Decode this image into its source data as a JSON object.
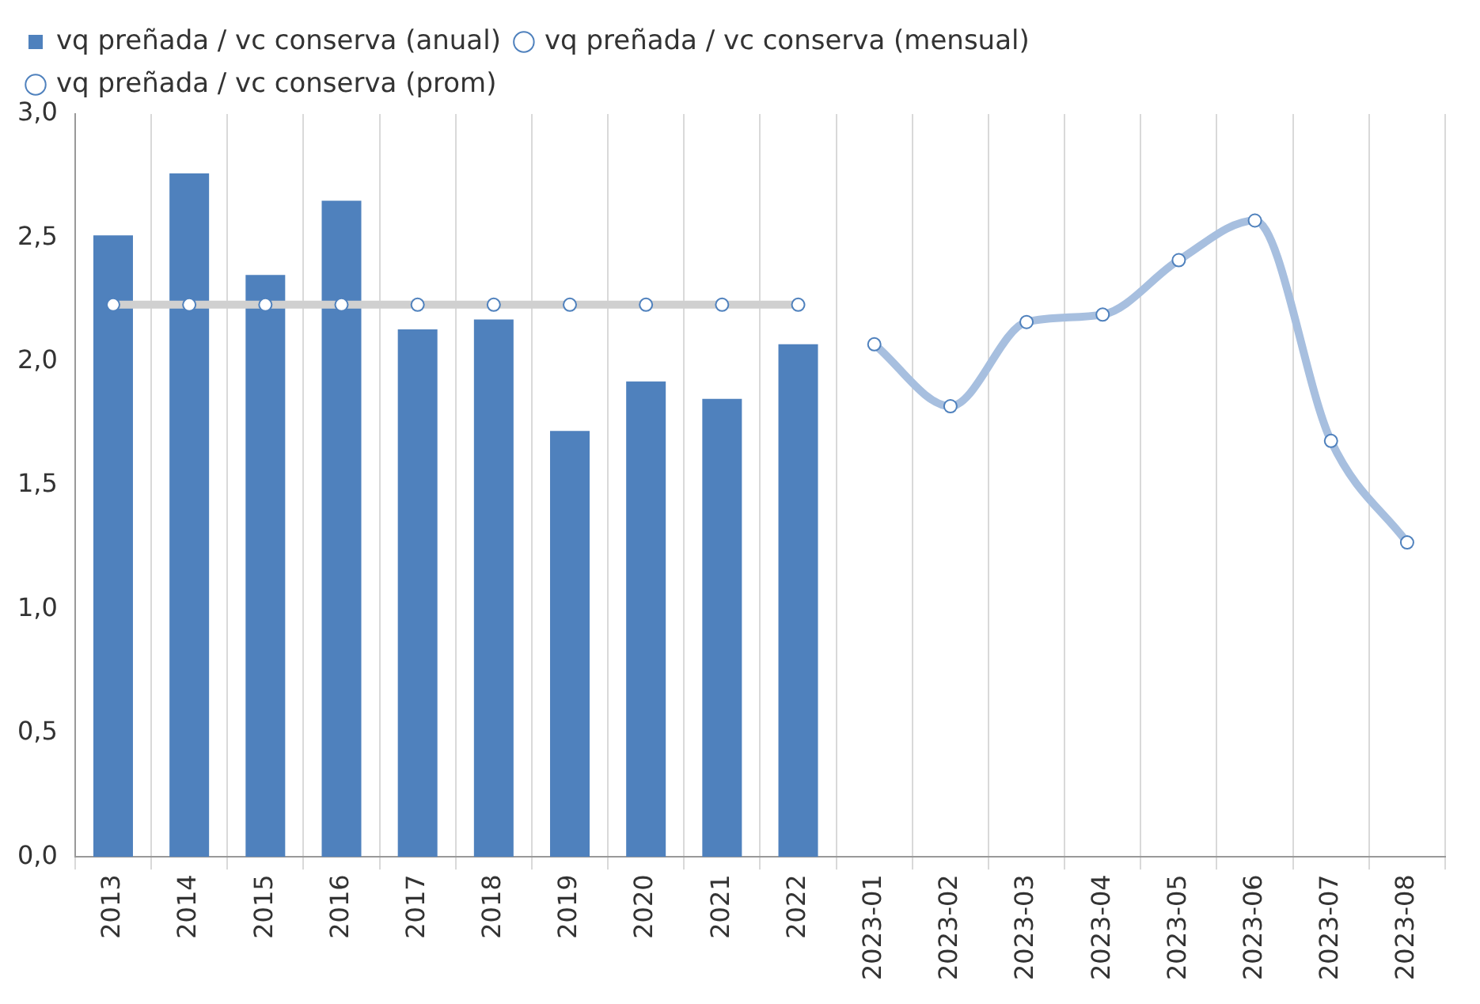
{
  "chart_data": {
    "type": "bar",
    "categories": [
      "2013",
      "2014",
      "2015",
      "2016",
      "2017",
      "2018",
      "2019",
      "2020",
      "2021",
      "2022",
      "2023-01",
      "2023-02",
      "2023-03",
      "2023-04",
      "2023-05",
      "2023-06",
      "2023-07",
      "2023-08"
    ],
    "series": [
      {
        "name": "vq preñada / vc conserva (anual)",
        "color": "#4f81bd",
        "values": [
          2.51,
          2.76,
          2.35,
          2.65,
          2.13,
          2.17,
          1.72,
          1.92,
          1.85,
          2.07,
          null,
          null,
          null,
          null,
          null,
          null,
          null,
          null
        ]
      },
      {
        "name": "vq preñada / vc conserva (mensual)",
        "type": "line",
        "color": "#a7bfdf",
        "marker": "circle",
        "values": [
          null,
          null,
          null,
          null,
          null,
          null,
          null,
          null,
          null,
          null,
          2.07,
          1.82,
          2.16,
          2.19,
          2.41,
          2.57,
          1.68,
          1.27
        ]
      },
      {
        "name": "vq preñada / vc conserva (prom)",
        "type": "line",
        "color": "#d0d0d0",
        "marker": "circle",
        "values": [
          2.23,
          2.23,
          2.23,
          2.23,
          2.23,
          2.23,
          2.23,
          2.23,
          2.23,
          2.23,
          null,
          null,
          null,
          null,
          null,
          null,
          null,
          null
        ]
      }
    ],
    "ylim": [
      0,
      3
    ],
    "yticks": [
      {
        "value": 0,
        "label": "0,0"
      },
      {
        "value": 0.5,
        "label": "0,5"
      },
      {
        "value": 1,
        "label": "1,0"
      },
      {
        "value": 1.5,
        "label": "1,5"
      },
      {
        "value": 2,
        "label": "2,0"
      },
      {
        "value": 2.5,
        "label": "2,5"
      },
      {
        "value": 3,
        "label": "3,0"
      }
    ],
    "grid": "x",
    "legend": "top"
  }
}
